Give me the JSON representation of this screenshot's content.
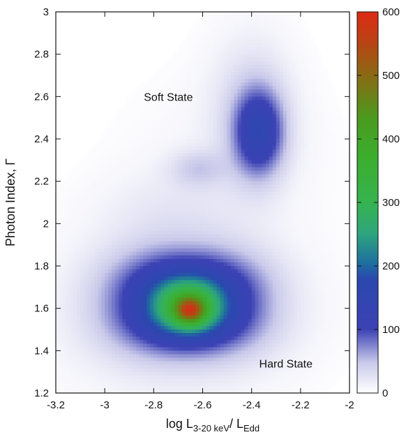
{
  "chart_data": {
    "type": "heatmap",
    "title": "",
    "xlabel": {
      "prefix": "log L",
      "sub1": "3-20 keV",
      "mid": "/ L",
      "sub2": "Edd"
    },
    "ylabel": "Photon Index, Γ",
    "xlim": [
      -3.2,
      -2.0
    ],
    "ylim": [
      1.2,
      3.0
    ],
    "xticks": [
      "-3.2",
      "-3",
      "-2.8",
      "-2.6",
      "-2.4",
      "-2.2",
      "-2"
    ],
    "yticks": [
      "1.2",
      "1.4",
      "1.6",
      "1.8",
      "2",
      "2.2",
      "2.4",
      "2.6",
      "2.8",
      "3"
    ],
    "colorbar": {
      "range": [
        0,
        600
      ],
      "ticks": [
        "0",
        "100",
        "200",
        "300",
        "400",
        "500",
        "600"
      ]
    },
    "density_peaks": [
      {
        "x": -2.65,
        "y": 1.6,
        "value": 560
      },
      {
        "x": -2.37,
        "y": 2.42,
        "value": 140
      },
      {
        "x": -2.62,
        "y": 2.26,
        "value": 60
      }
    ],
    "annotations": [
      {
        "text": "Soft State",
        "x": -2.74,
        "y": 2.58
      },
      {
        "text": "Hard State",
        "x": -2.26,
        "y": 1.32
      }
    ],
    "grid": false
  }
}
